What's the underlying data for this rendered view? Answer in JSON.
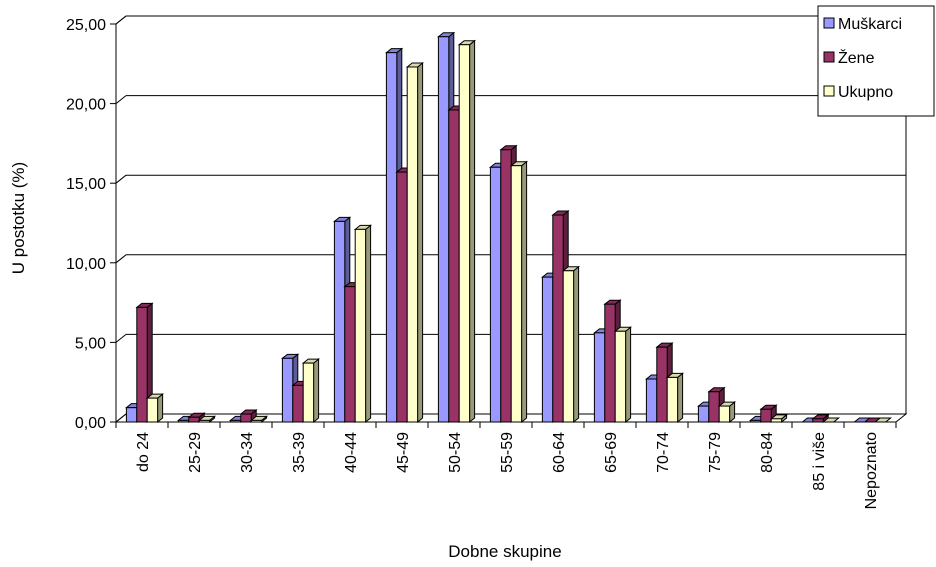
{
  "chart_data": {
    "type": "bar",
    "title": "",
    "xlabel": "Dobne skupine",
    "ylabel": "U postotku (%)",
    "ylim": [
      0,
      25
    ],
    "yticks": [
      "0,00",
      "5,00",
      "10,00",
      "15,00",
      "20,00",
      "25,00"
    ],
    "grid": true,
    "legend_position": "top-right",
    "categories": [
      "do 24",
      "25-29",
      "30-34",
      "35-39",
      "40-44",
      "45-49",
      "50-54",
      "55-59",
      "60-64",
      "65-69",
      "70-74",
      "75-79",
      "80-84",
      "85 i više",
      "Nepoznato"
    ],
    "series": [
      {
        "name": "Muškarci",
        "color": "#9999ff",
        "values": [
          0.9,
          0.1,
          0.1,
          4.0,
          12.6,
          23.2,
          24.2,
          16.0,
          9.1,
          5.6,
          2.7,
          1.0,
          0.1,
          0.0,
          0.0
        ]
      },
      {
        "name": "Žene",
        "color": "#993366",
        "values": [
          7.2,
          0.3,
          0.5,
          2.3,
          8.5,
          15.7,
          19.6,
          17.1,
          13.0,
          7.4,
          4.7,
          1.9,
          0.8,
          0.2,
          0.0
        ]
      },
      {
        "name": "Ukupno",
        "color": "#ffffcc",
        "values": [
          1.5,
          0.1,
          0.1,
          3.7,
          12.1,
          22.3,
          23.7,
          16.1,
          9.5,
          5.7,
          2.8,
          1.0,
          0.2,
          0.0,
          0.0
        ]
      }
    ]
  }
}
